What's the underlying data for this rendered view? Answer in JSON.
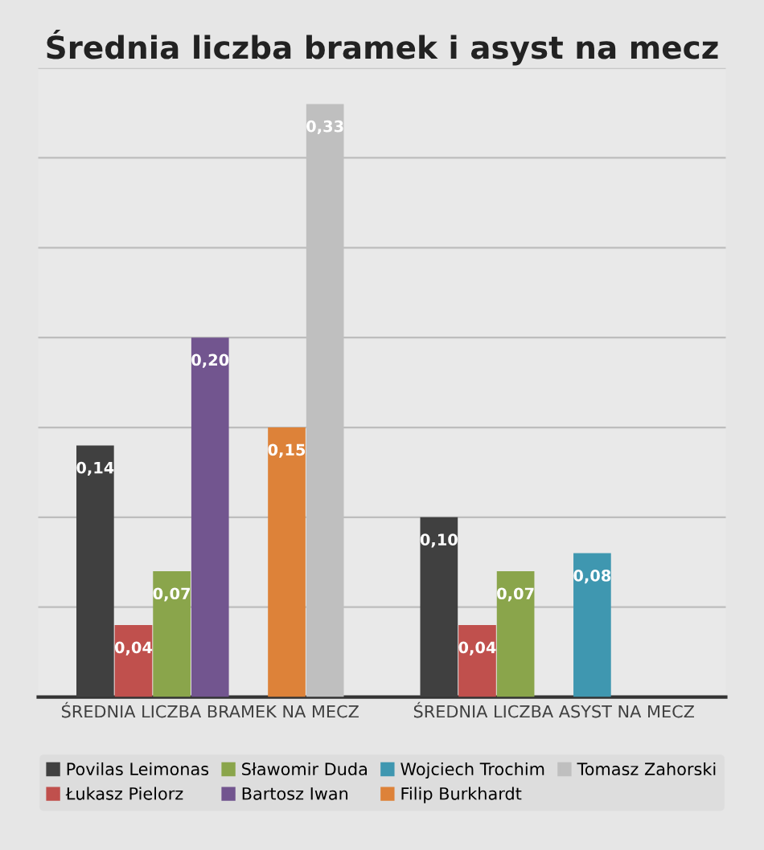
{
  "chart_data": {
    "type": "bar",
    "title": "Średnia liczba bramek i asyst na mecz",
    "categories": [
      "ŚREDNIA LICZBA BRAMEK NA MECZ",
      "ŚREDNIA LICZBA ASYST NA MECZ"
    ],
    "series": [
      {
        "name": "Povilas Leimonas",
        "color": "#404040",
        "values": [
          0.14,
          0.1
        ],
        "value_labels": [
          "0,14",
          "0,10"
        ]
      },
      {
        "name": "Łukasz Pielorz",
        "color": "#c0504d",
        "values": [
          0.04,
          0.04
        ],
        "value_labels": [
          "0,04",
          "0,04"
        ]
      },
      {
        "name": "Sławomir Duda",
        "color": "#8aa54b",
        "values": [
          0.07,
          0.07
        ],
        "value_labels": [
          "0,07",
          "0,07"
        ]
      },
      {
        "name": "Bartosz Iwan",
        "color": "#72558f",
        "values": [
          0.2,
          null
        ],
        "value_labels": [
          "0,20",
          null
        ]
      },
      {
        "name": "Wojciech Trochim",
        "color": "#3f97b0",
        "values": [
          null,
          0.08
        ],
        "value_labels": [
          null,
          "0,08"
        ]
      },
      {
        "name": "Filip Burkhardt",
        "color": "#dd8239",
        "values": [
          0.15,
          null
        ],
        "value_labels": [
          "0,15",
          null
        ]
      },
      {
        "name": "Tomasz Zahorski",
        "color": "#bfbfbf",
        "values": [
          0.33,
          null
        ],
        "value_labels": [
          "0,33",
          null
        ]
      }
    ],
    "ylim": [
      0,
      0.35
    ],
    "yticks": [
      {
        "value": 0,
        "label": null
      },
      {
        "value": 0.05,
        "label": null
      },
      {
        "value": 0.1,
        "label": null
      },
      {
        "value": 0.15,
        "label": null
      },
      {
        "value": 0.2,
        "label": null
      },
      {
        "value": 0.25,
        "label": null
      },
      {
        "value": 0.3,
        "label": null
      },
      {
        "value": 0.35,
        "label": null
      }
    ],
    "tick_labels": "x",
    "grid": "y",
    "legend": "bottom"
  }
}
